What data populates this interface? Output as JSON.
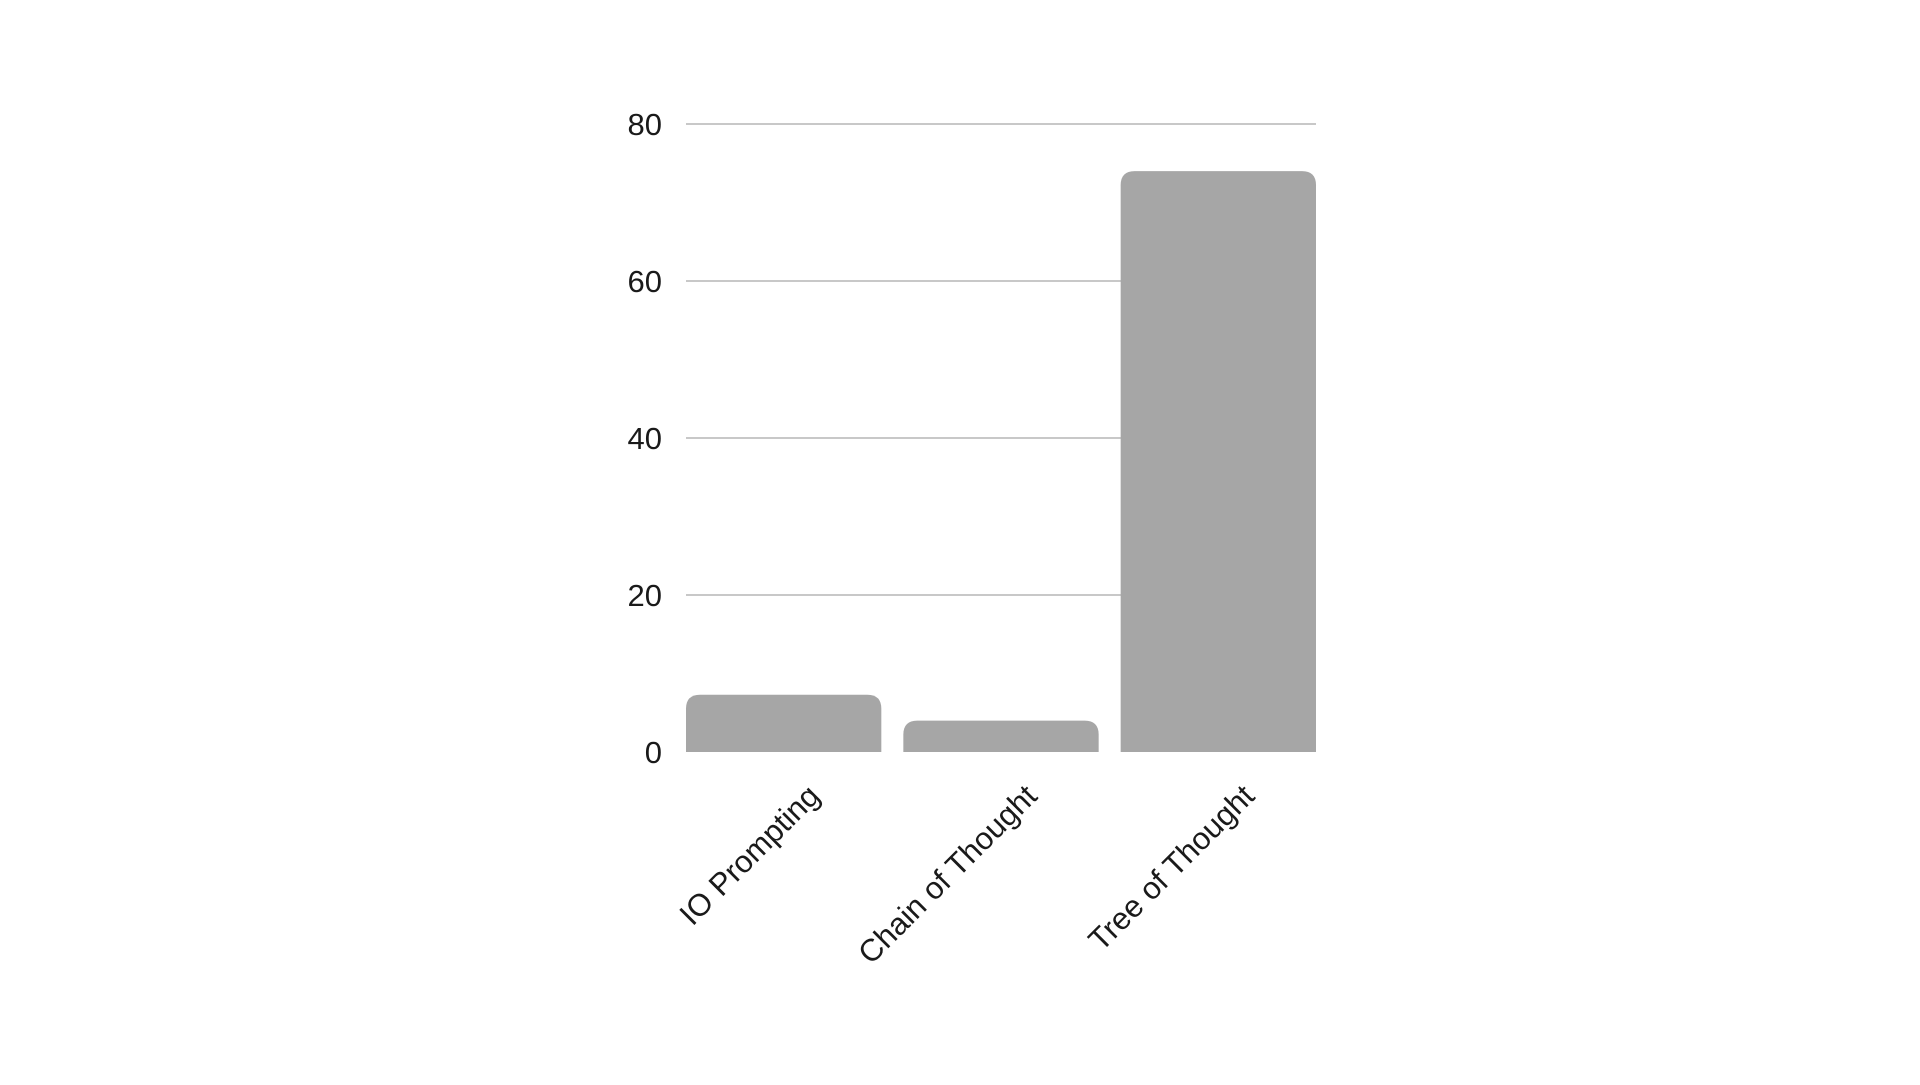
{
  "chart_data": {
    "type": "bar",
    "title": "",
    "xlabel": "",
    "ylabel": "",
    "categories": [
      "IO Prompting",
      "Chain of Thought",
      "Tree of Thought"
    ],
    "values": [
      7.3,
      4,
      74
    ],
    "ylim": [
      0,
      80
    ],
    "yticks": [
      0,
      20,
      40,
      60,
      80
    ],
    "grid": true,
    "legend": "none",
    "bar_color": "#a6a6a6",
    "grid_color": "#c8c8c8"
  }
}
